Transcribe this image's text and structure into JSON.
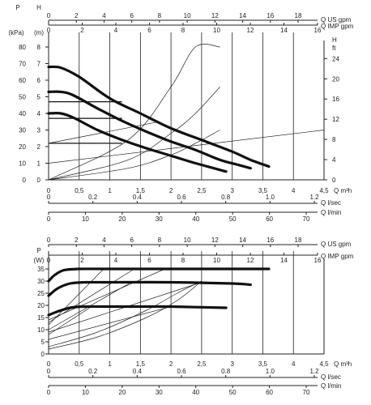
{
  "chart_data": [
    {
      "type": "line",
      "title": "",
      "left_axes": [
        {
          "label": "P",
          "unit": "(kPa)",
          "range": [
            0,
            80
          ],
          "ticks": [
            0,
            10,
            20,
            30,
            40,
            50,
            60,
            70,
            80
          ]
        },
        {
          "label": "H",
          "unit": "(m)",
          "range": [
            0,
            8
          ],
          "ticks": [
            0,
            1,
            2,
            3,
            4,
            5,
            6,
            7,
            8
          ]
        }
      ],
      "right_axis": {
        "label": "H",
        "unit": "ft",
        "range": [
          0,
          24
        ],
        "ticks": [
          0,
          4,
          8,
          12,
          16,
          20,
          24
        ]
      },
      "top_axes": [
        {
          "label": "Q US gpm",
          "ticks": [
            0,
            2,
            4,
            6,
            8,
            10,
            12,
            14,
            16,
            18
          ]
        },
        {
          "label": "Q IMP gpm",
          "ticks": [
            0,
            2,
            4,
            6,
            8,
            10,
            12,
            14,
            16
          ]
        }
      ],
      "bottom_axes": [
        {
          "label": "Q m³h",
          "ticks": [
            "0",
            "0,5",
            "1",
            "1,5",
            "2",
            "2,5",
            "3",
            "3,5",
            "4",
            "4,5"
          ]
        },
        {
          "label": "Q l/sec",
          "ticks": [
            "0",
            "0.2",
            "0.4",
            "0.6",
            "0.8",
            "1.0",
            "1.2"
          ]
        },
        {
          "label": "Q l/min",
          "ticks": [
            "0",
            "10",
            "20",
            "30",
            "40",
            "50",
            "60",
            "70"
          ]
        }
      ],
      "xlim_m3h": [
        0,
        4.5
      ],
      "ylim_kpa": [
        0,
        80
      ],
      "grid": "vertical lines every 0.5 m³h, horizontal at step levels",
      "series": [
        {
          "x": [
            0,
            0.2,
            0.5,
            1.0,
            1.5,
            2.0,
            2.5,
            3.0,
            3.3,
            3.6
          ],
          "y": [
            68,
            67.5,
            62,
            49,
            40,
            31,
            24,
            17,
            12,
            8
          ]
        },
        {
          "x": [
            0,
            0.2,
            0.4,
            0.8,
            1.2,
            1.6,
            2.0,
            2.4,
            2.8,
            3.1,
            3.3
          ],
          "y": [
            53,
            53,
            51,
            43,
            35.5,
            29,
            23,
            18,
            12,
            9,
            7
          ]
        },
        {
          "x": [
            0,
            0.2,
            0.4,
            0.8,
            1.2,
            1.6,
            2.0,
            2.4,
            2.9
          ],
          "y": [
            40,
            40,
            37.5,
            30,
            24,
            19,
            14.5,
            10,
            5
          ]
        }
      ],
      "system_curves_x": [
        0,
        1.3,
        2.0,
        2.4,
        2.8
      ],
      "system_curves_y": [
        [
          0,
          7,
          15,
          22,
          30
        ],
        [
          0,
          12,
          28,
          40,
          56
        ],
        [
          0,
          24,
          56,
          80,
          106
        ]
      ],
      "reference_levels_kpa": [
        47,
        37,
        22
      ],
      "sloped_lines": [
        {
          "from": [
            0,
            10
          ],
          "to": [
            4.5,
            30
          ]
        },
        {
          "from": [
            0,
            22
          ],
          "to": [
            1.8,
            35
          ]
        }
      ]
    },
    {
      "type": "line",
      "title": "",
      "left_axis": {
        "label": "P",
        "unit": "(W)",
        "range": [
          0,
          37
        ],
        "ticks": [
          0,
          5,
          10,
          15,
          20,
          25,
          30,
          35
        ]
      },
      "top_axes": [
        {
          "label": "Q US gpm",
          "ticks": [
            0,
            2,
            4,
            6,
            8,
            10,
            12,
            14,
            16,
            18
          ]
        },
        {
          "label": "Q IMP gpm",
          "ticks": [
            0,
            2,
            4,
            6,
            8,
            10,
            12,
            14,
            16
          ]
        }
      ],
      "bottom_axes": [
        {
          "label": "Q m³h",
          "ticks": [
            "0",
            "0,5",
            "1",
            "1,5",
            "2",
            "2,5",
            "3",
            "3,5",
            "4",
            "4,5"
          ]
        },
        {
          "label": "Q l/sec",
          "ticks": [
            "0",
            "0.2",
            "0.4",
            "0.6",
            "0.8",
            "1.0",
            "1.2"
          ]
        },
        {
          "label": "Q l/min",
          "ticks": [
            "0",
            "10",
            "20",
            "30",
            "40",
            "50",
            "60",
            "70"
          ]
        }
      ],
      "xlim_m3h": [
        0,
        4.5
      ],
      "ylim_w": [
        0,
        37
      ],
      "series": [
        {
          "x": [
            0,
            0.1,
            0.25,
            0.5,
            1.0,
            2.0,
            3.0,
            3.6
          ],
          "y": [
            30,
            32.5,
            34.5,
            35,
            35,
            35,
            35,
            35
          ]
        },
        {
          "x": [
            0,
            0.15,
            0.35,
            0.6,
            1.0,
            2.0,
            3.0,
            3.3
          ],
          "y": [
            24,
            27,
            29,
            29.5,
            29.5,
            29.5,
            29,
            28.5
          ]
        },
        {
          "x": [
            0,
            0.15,
            0.35,
            0.55,
            1.0,
            1.5,
            2.0,
            2.9
          ],
          "y": [
            16,
            17.5,
            19,
            19.5,
            19.5,
            19.5,
            19.5,
            19
          ]
        }
      ],
      "power_rise_lines": [
        {
          "from": [
            0,
            12
          ],
          "to": [
            0.9,
            35
          ]
        },
        {
          "from": [
            0,
            13
          ],
          "to": [
            1.4,
            35
          ]
        },
        {
          "from": [
            0,
            14
          ],
          "to": [
            1.9,
            35
          ]
        },
        {
          "from": [
            0,
            10
          ],
          "to": [
            1.35,
            29.5
          ]
        },
        {
          "from": [
            0,
            9
          ],
          "to": [
            2.5,
            29.5
          ]
        },
        {
          "from": [
            0,
            8
          ],
          "to": [
            0.7,
            19.5
          ]
        },
        {
          "from": [
            0,
            6
          ],
          "to": [
            2.0,
            19.5
          ]
        }
      ],
      "system_curves_x": [
        0,
        0.8,
        1.6,
        2.1,
        2.5
      ],
      "system_curves_y": [
        [
          2,
          7,
          15,
          22,
          30
        ],
        [
          3,
          9,
          18,
          25,
          30
        ]
      ]
    }
  ]
}
